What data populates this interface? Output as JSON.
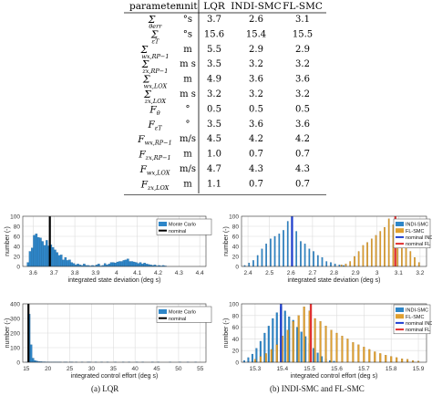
{
  "table": {
    "headers": [
      "parameter",
      "unit",
      "LQR",
      "INDI-SMC",
      "FL-SMC"
    ],
    "rows": [
      {
        "param": "Σ θ_err",
        "base": "Σ",
        "sub": "θerr",
        "unit": "°s",
        "lqr": "3.7",
        "indi": "2.6",
        "fl": "3.1"
      },
      {
        "param": "Σ ε_T",
        "base": "Σ",
        "sub": "εT",
        "unit": "°s",
        "lqr": "15.6",
        "indi": "15.4",
        "fl": "15.5"
      },
      {
        "param": "Σ w_x,RP-1",
        "base": "Σ",
        "sub": "wx,RP−1",
        "unit": "m",
        "lqr": "5.5",
        "indi": "2.9",
        "fl": "2.9"
      },
      {
        "param": "Σ z_x,RP-1",
        "base": "Σ",
        "sub": "zx,RP−1",
        "unit": "m s",
        "lqr": "3.5",
        "indi": "3.2",
        "fl": "3.2"
      },
      {
        "param": "Σ w_x,LOX",
        "base": "Σ",
        "sub": "wx,LOX",
        "unit": "m",
        "lqr": "4.9",
        "indi": "3.6",
        "fl": "3.6"
      },
      {
        "param": "Σ z_x,LOX",
        "base": "Σ",
        "sub": "zx,LOX",
        "unit": "m s",
        "lqr": "3.2",
        "indi": "3.2",
        "fl": "3.2"
      },
      {
        "param": "F_θ",
        "base": "F",
        "sub": "θ",
        "unit": "°",
        "lqr": "0.5",
        "indi": "0.5",
        "fl": "0.5"
      },
      {
        "param": "F_εT",
        "base": "F",
        "sub": "εT",
        "unit": "°",
        "lqr": "3.5",
        "indi": "3.6",
        "fl": "3.6"
      },
      {
        "param": "F_w x,RP-1",
        "base": "F",
        "sub": "wx,RP−1",
        "unit": "m/s",
        "lqr": "4.5",
        "indi": "4.2",
        "fl": "4.2"
      },
      {
        "param": "F_z x,RP-1",
        "base": "F",
        "sub": "zx,RP−1",
        "unit": "m",
        "lqr": "1.0",
        "indi": "0.7",
        "fl": "0.7"
      },
      {
        "param": "F_w x,LOX",
        "base": "F",
        "sub": "wx,LOX",
        "unit": "m/s",
        "lqr": "4.7",
        "indi": "4.3",
        "fl": "4.3"
      },
      {
        "param": "F_z x,LOX",
        "base": "F",
        "sub": "zx,LOX",
        "unit": "m",
        "lqr": "1.1",
        "indi": "0.7",
        "fl": "0.7"
      }
    ]
  },
  "captions": {
    "a": "(a)  LQR",
    "b": "(b)  INDI-SMC and FL-SMC"
  },
  "chart_data": [
    {
      "id": "lqr-state",
      "type": "bar",
      "ylabel": "number (-)",
      "xlabel": "integrated state deviation (deg s)",
      "xlim": [
        3.55,
        4.43
      ],
      "ylim": [
        0,
        100
      ],
      "grid": true,
      "legend_position": "top-right",
      "xticks": [
        "3.6",
        "3.7",
        "3.8",
        "3.9",
        "4",
        "4.1",
        "4.2",
        "4.3",
        "4.4"
      ],
      "yticks": [
        "0",
        "20",
        "40",
        "60",
        "80",
        "100"
      ],
      "bin_start": 3.57,
      "bin_width": 0.01,
      "series": [
        {
          "name": "Monte Carlo",
          "color": "#2e86c8",
          "values": [
            8,
            30,
            37,
            62,
            65,
            58,
            57,
            50,
            42,
            52,
            41,
            43,
            38,
            33,
            28,
            22,
            23,
            13,
            18,
            12,
            13,
            8,
            6,
            3,
            5,
            3,
            2,
            5,
            2,
            2,
            1,
            2,
            1,
            3,
            5,
            1,
            2,
            6,
            3,
            5,
            8,
            8,
            7,
            9,
            10,
            10,
            12,
            13,
            15,
            10,
            10,
            9,
            8,
            6,
            8,
            5,
            7,
            5,
            4,
            3,
            2,
            3,
            1,
            2,
            1,
            2,
            1
          ]
        }
      ],
      "lines": [
        {
          "name": "nominal",
          "x": 3.68,
          "color": "#000000"
        }
      ]
    },
    {
      "id": "lqr-control",
      "type": "bar",
      "ylabel": "number (-)",
      "xlabel": "integrated control effort (deg s)",
      "xlim": [
        14.2,
        56.3
      ],
      "ylim": [
        0,
        400
      ],
      "grid": true,
      "legend_position": "top-right",
      "xticks": [
        "15",
        "20",
        "25",
        "30",
        "35",
        "40",
        "45",
        "50",
        "55"
      ],
      "yticks": [
        "0",
        "100",
        "200",
        "300",
        "400"
      ],
      "bin_start": 15,
      "bin_width": 0.45,
      "series": [
        {
          "name": "Monte Carlo",
          "color": "#2e86c8",
          "values": [
            2,
            330,
            120,
            28,
            12,
            8,
            5,
            4,
            3,
            3,
            2,
            2,
            1,
            1,
            2,
            1,
            1,
            1,
            0,
            1,
            1,
            0,
            1,
            1,
            0,
            1,
            0,
            0,
            1,
            0,
            0,
            1,
            1,
            0,
            0,
            1,
            0,
            0,
            1,
            0,
            0,
            1,
            0,
            0,
            0,
            1,
            0,
            0,
            0,
            1,
            0,
            0,
            1,
            0,
            0,
            0,
            1,
            0,
            0,
            1,
            0,
            0,
            0,
            0,
            1,
            0,
            0,
            1,
            0,
            0,
            0,
            0,
            0,
            1,
            0,
            0,
            0,
            0,
            1,
            0,
            0,
            0,
            1,
            0,
            0,
            0,
            1,
            0,
            0,
            0
          ]
        }
      ],
      "lines": [
        {
          "name": "nominal",
          "x": 15.5,
          "color": "#000000"
        }
      ]
    },
    {
      "id": "smc-state",
      "type": "bar",
      "ylabel": "number (-)",
      "xlabel": "integrated state deviation (deg s)",
      "xlim": [
        2.37,
        3.23
      ],
      "ylim": [
        0,
        100
      ],
      "grid": true,
      "legend_position": "top-right",
      "xticks": [
        "2.4",
        "2.5",
        "2.6",
        "2.7",
        "2.8",
        "2.9",
        "3",
        "3.1",
        "3.2"
      ],
      "yticks": [
        "0",
        "20",
        "40",
        "60",
        "80",
        "100"
      ],
      "bin_width": 0.006,
      "series": [
        {
          "name": "INDI-SMC",
          "color": "#2e86c8",
          "x": [
            2.385,
            2.405,
            2.425,
            2.445,
            2.465,
            2.485,
            2.505,
            2.525,
            2.545,
            2.565,
            2.585,
            2.605,
            2.625,
            2.645,
            2.665,
            2.685,
            2.705,
            2.725,
            2.745,
            2.765,
            2.785,
            2.805,
            2.825,
            2.845
          ],
          "values": [
            2,
            7,
            12,
            22,
            35,
            45,
            55,
            60,
            65,
            72,
            90,
            60,
            70,
            50,
            45,
            35,
            30,
            22,
            18,
            10,
            8,
            5,
            3,
            2
          ]
        },
        {
          "name": "FL-SMC",
          "color": "#e0a030",
          "x": [
            2.835,
            2.855,
            2.875,
            2.895,
            2.915,
            2.935,
            2.955,
            2.975,
            2.995,
            3.015,
            3.035,
            3.055,
            3.075,
            3.095,
            3.115,
            3.135,
            3.155,
            3.175,
            3.195
          ],
          "values": [
            3,
            5,
            10,
            20,
            30,
            42,
            48,
            55,
            62,
            70,
            78,
            95,
            83,
            70,
            60,
            42,
            30,
            18,
            8
          ]
        }
      ],
      "lines": [
        {
          "name": "nominal INDI",
          "x": 2.605,
          "color": "#1f3fd0"
        },
        {
          "name": "nominal FL",
          "x": 3.085,
          "color": "#e03030"
        }
      ]
    },
    {
      "id": "smc-control",
      "type": "bar",
      "ylabel": "number (-)",
      "xlabel": "integrated control effort (deg s)",
      "xlim": [
        15.25,
        15.93
      ],
      "ylim": [
        0,
        100
      ],
      "grid": true,
      "legend_position": "top-right",
      "xticks": [
        "15.3",
        "15.4",
        "15.5",
        "15.6",
        "15.7",
        "15.8",
        "15.9"
      ],
      "yticks": [
        "0",
        "20",
        "40",
        "60",
        "80",
        "100"
      ],
      "bin_width": 0.006,
      "series": [
        {
          "name": "INDI-SMC",
          "color": "#2e86c8",
          "x": [
            15.26,
            15.275,
            15.29,
            15.305,
            15.32,
            15.335,
            15.35,
            15.365,
            15.38,
            15.395,
            15.41,
            15.425,
            15.44,
            15.455,
            15.47,
            15.485,
            15.5,
            15.515,
            15.53,
            15.545,
            15.56,
            15.575,
            15.59
          ],
          "values": [
            3,
            8,
            14,
            24,
            36,
            50,
            62,
            75,
            85,
            95,
            88,
            78,
            72,
            60,
            52,
            44,
            32,
            24,
            16,
            10,
            6,
            3,
            2
          ]
        },
        {
          "name": "FL-SMC",
          "color": "#e0a030",
          "x": [
            15.3,
            15.32,
            15.34,
            15.36,
            15.38,
            15.4,
            15.42,
            15.44,
            15.46,
            15.48,
            15.5,
            15.52,
            15.54,
            15.56,
            15.58,
            15.6,
            15.62,
            15.64,
            15.66,
            15.68,
            15.7,
            15.72,
            15.74,
            15.76,
            15.78,
            15.8,
            15.82,
            15.84,
            15.86,
            15.88,
            15.9
          ],
          "values": [
            5,
            10,
            15,
            22,
            30,
            45,
            55,
            70,
            80,
            95,
            88,
            75,
            70,
            62,
            55,
            50,
            45,
            40,
            34,
            30,
            26,
            22,
            18,
            15,
            12,
            10,
            8,
            6,
            5,
            3,
            2
          ]
        }
      ],
      "lines": [
        {
          "name": "nominal INDI",
          "x": 15.395,
          "color": "#1f3fd0"
        },
        {
          "name": "nominal FL",
          "x": 15.505,
          "color": "#e03030"
        }
      ]
    }
  ]
}
